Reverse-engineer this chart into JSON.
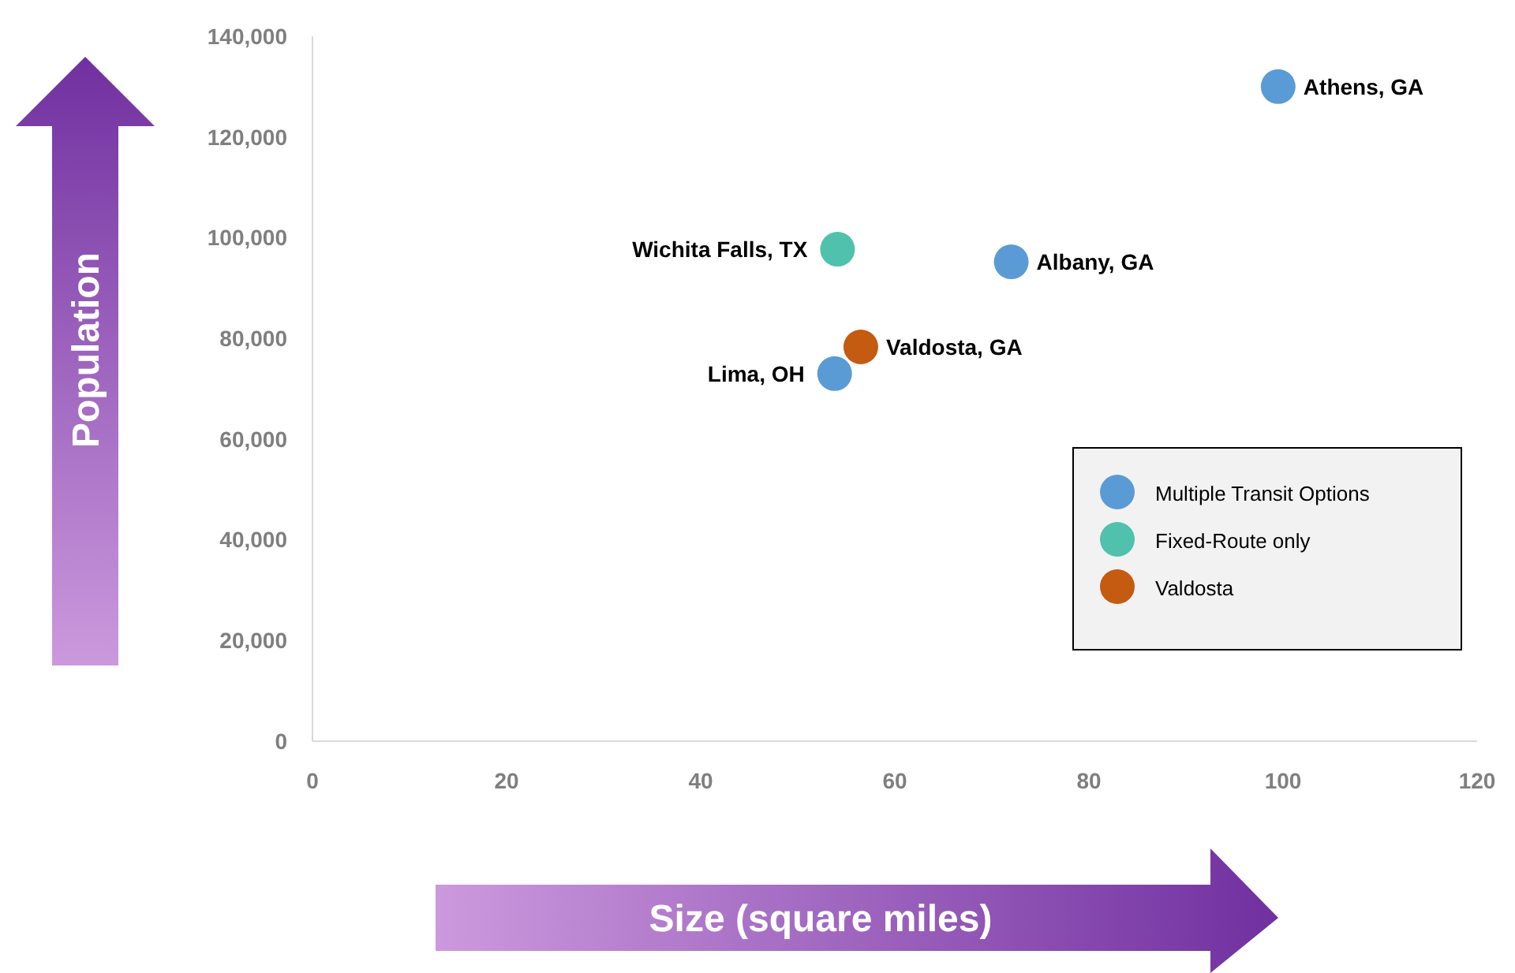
{
  "chart_data": {
    "type": "scatter",
    "xlabel": "Size (square miles)",
    "ylabel": "Population",
    "xlim": [
      0,
      120
    ],
    "xticks": [
      0,
      20,
      40,
      60,
      80,
      100,
      120
    ],
    "ylim": [
      0,
      140000
    ],
    "yticks": [
      {
        "value": 0,
        "label": "0"
      },
      {
        "value": 20000,
        "label": "20,000"
      },
      {
        "value": 40000,
        "label": "40,000"
      },
      {
        "value": 60000,
        "label": "60,000"
      },
      {
        "value": 80000,
        "label": "80,000"
      },
      {
        "value": 100000,
        "label": "100,000"
      },
      {
        "value": 120000,
        "label": "120,000"
      },
      {
        "value": 140000,
        "label": "140,000"
      }
    ],
    "grid": false,
    "legend": "right",
    "marker": "circle",
    "series": [
      {
        "name": "Multiple Transit Options",
        "color": "#5b9bd5",
        "x": [
          99.5,
          72,
          53.8
        ],
        "values": [
          130000,
          95200,
          73000
        ]
      },
      {
        "name": "Fixed-Route only",
        "color": "#4fc1ac",
        "x": [
          54.1
        ],
        "values": [
          97700
        ]
      },
      {
        "name": "Valdosta",
        "color": "#c55a11",
        "x": [
          56.5
        ],
        "values": [
          78300
        ]
      }
    ],
    "annotations": [
      {
        "text": "Athens, GA",
        "x": 99.5,
        "y": 130000
      },
      {
        "text": "Albany, GA",
        "x": 72,
        "y": 95200
      },
      {
        "text": "Wichita Falls, TX",
        "x": 54.1,
        "y": 97700
      },
      {
        "text": "Valdosta, GA",
        "x": 56.5,
        "y": 78300
      },
      {
        "text": "Lima, OH",
        "x": 53.8,
        "y": 73000
      }
    ]
  }
}
